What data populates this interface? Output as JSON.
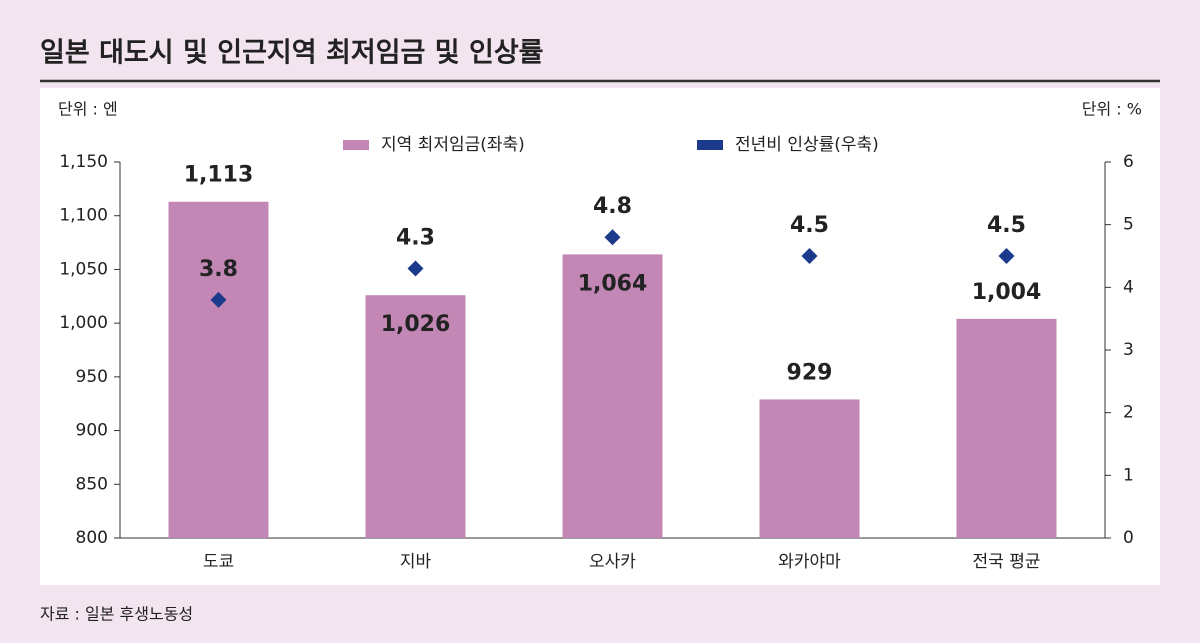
{
  "chart_data": {
    "type": "bar",
    "title": "일본 대도시 및 인근지역 최저임금 및 인상률",
    "y_unit": "단위 : 엔",
    "y2_unit": "단위 : %",
    "source": "자료 : 일본 후생노동성",
    "categories": [
      "도쿄",
      "지바",
      "오사카",
      "와카야마",
      "전국 평균"
    ],
    "series": [
      {
        "name": "지역 최저임금(좌축)",
        "type": "bar",
        "color": "#c387b5",
        "label_color": "#c387b5",
        "values": [
          1113,
          1026,
          1064,
          929,
          1004
        ],
        "value_labels": [
          "1,113",
          "1,026",
          "1,064",
          "929",
          "1,004"
        ]
      },
      {
        "name": "전년비 인상률(우축)",
        "type": "scatter",
        "marker": "diamond",
        "axis": "y2",
        "color": "#1b3a8c",
        "values": [
          3.8,
          4.3,
          4.8,
          4.5,
          4.5
        ]
      }
    ],
    "ylim": [
      800,
      1150
    ],
    "yticks": [
      800,
      850,
      900,
      950,
      {
        "value": 1000,
        "label": "1,000"
      },
      {
        "value": 1050,
        "label": "1,050"
      },
      {
        "value": 1100,
        "label": "1,100"
      },
      {
        "value": 1150,
        "label": "1,150"
      }
    ],
    "y2lim": [
      0,
      6
    ],
    "y2ticks": [
      0,
      1,
      2,
      3,
      4,
      5,
      6
    ],
    "grid": false,
    "legend": "top"
  }
}
